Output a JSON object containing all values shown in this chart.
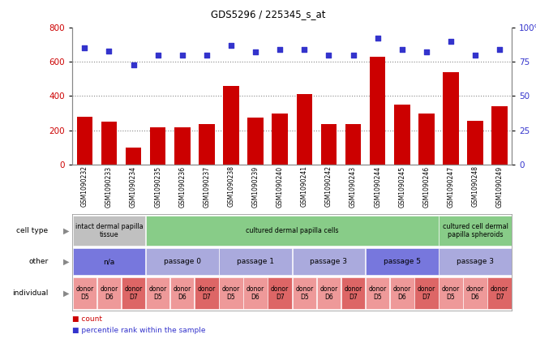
{
  "title": "GDS5296 / 225345_s_at",
  "samples": [
    "GSM1090232",
    "GSM1090233",
    "GSM1090234",
    "GSM1090235",
    "GSM1090236",
    "GSM1090237",
    "GSM1090238",
    "GSM1090239",
    "GSM1090240",
    "GSM1090241",
    "GSM1090242",
    "GSM1090243",
    "GSM1090244",
    "GSM1090245",
    "GSM1090246",
    "GSM1090247",
    "GSM1090248",
    "GSM1090249"
  ],
  "counts": [
    280,
    250,
    100,
    220,
    220,
    235,
    460,
    275,
    300,
    410,
    235,
    235,
    630,
    350,
    300,
    540,
    255,
    340
  ],
  "percentiles": [
    85,
    83,
    73,
    80,
    80,
    80,
    87,
    82,
    84,
    84,
    80,
    80,
    92,
    84,
    82,
    90,
    80,
    84
  ],
  "bar_color": "#cc0000",
  "dot_color": "#3333cc",
  "ylim_left": [
    0,
    800
  ],
  "ylim_right": [
    0,
    100
  ],
  "yticks_left": [
    0,
    200,
    400,
    600,
    800
  ],
  "yticks_right": [
    0,
    25,
    50,
    75,
    100
  ],
  "cell_type_groups": [
    {
      "label": "intact dermal papilla\ntissue",
      "start": 0,
      "end": 3,
      "color": "#c0c0c0"
    },
    {
      "label": "cultured dermal papilla cells",
      "start": 3,
      "end": 15,
      "color": "#88cc88"
    },
    {
      "label": "cultured cell dermal\npapilla spheroids",
      "start": 15,
      "end": 18,
      "color": "#88cc88"
    }
  ],
  "other_groups": [
    {
      "label": "n/a",
      "start": 0,
      "end": 3,
      "color": "#7777dd"
    },
    {
      "label": "passage 0",
      "start": 3,
      "end": 6,
      "color": "#aaaadd"
    },
    {
      "label": "passage 1",
      "start": 6,
      "end": 9,
      "color": "#aaaadd"
    },
    {
      "label": "passage 3",
      "start": 9,
      "end": 12,
      "color": "#aaaadd"
    },
    {
      "label": "passage 5",
      "start": 12,
      "end": 15,
      "color": "#7777dd"
    },
    {
      "label": "passage 3",
      "start": 15,
      "end": 18,
      "color": "#aaaadd"
    }
  ],
  "individual_groups": [
    {
      "label": "donor\nD5",
      "start": 0,
      "end": 1,
      "color": "#ee9999"
    },
    {
      "label": "donor\nD6",
      "start": 1,
      "end": 2,
      "color": "#ee9999"
    },
    {
      "label": "donor\nD7",
      "start": 2,
      "end": 3,
      "color": "#dd6666"
    },
    {
      "label": "donor\nD5",
      "start": 3,
      "end": 4,
      "color": "#ee9999"
    },
    {
      "label": "donor\nD6",
      "start": 4,
      "end": 5,
      "color": "#ee9999"
    },
    {
      "label": "donor\nD7",
      "start": 5,
      "end": 6,
      "color": "#dd6666"
    },
    {
      "label": "donor\nD5",
      "start": 6,
      "end": 7,
      "color": "#ee9999"
    },
    {
      "label": "donor\nD6",
      "start": 7,
      "end": 8,
      "color": "#ee9999"
    },
    {
      "label": "donor\nD7",
      "start": 8,
      "end": 9,
      "color": "#dd6666"
    },
    {
      "label": "donor\nD5",
      "start": 9,
      "end": 10,
      "color": "#ee9999"
    },
    {
      "label": "donor\nD6",
      "start": 10,
      "end": 11,
      "color": "#ee9999"
    },
    {
      "label": "donor\nD7",
      "start": 11,
      "end": 12,
      "color": "#dd6666"
    },
    {
      "label": "donor\nD5",
      "start": 12,
      "end": 13,
      "color": "#ee9999"
    },
    {
      "label": "donor\nD6",
      "start": 13,
      "end": 14,
      "color": "#ee9999"
    },
    {
      "label": "donor\nD7",
      "start": 14,
      "end": 15,
      "color": "#dd6666"
    },
    {
      "label": "donor\nD5",
      "start": 15,
      "end": 16,
      "color": "#ee9999"
    },
    {
      "label": "donor\nD6",
      "start": 16,
      "end": 17,
      "color": "#ee9999"
    },
    {
      "label": "donor\nD7",
      "start": 17,
      "end": 18,
      "color": "#dd6666"
    }
  ],
  "row_labels": [
    "cell type",
    "other",
    "individual"
  ],
  "bg_color": "#ffffff",
  "grid_color": "#888888",
  "axis_color_left": "#cc0000",
  "axis_color_right": "#3333cc",
  "legend_count_color": "#cc0000",
  "legend_pct_color": "#3333cc"
}
